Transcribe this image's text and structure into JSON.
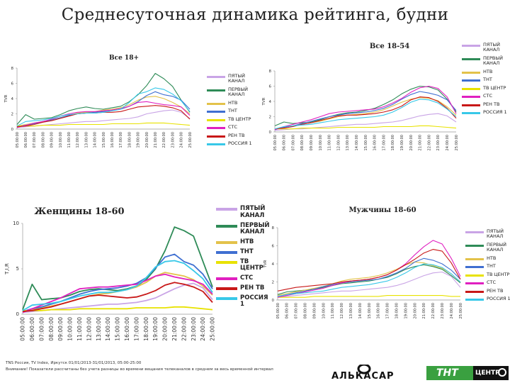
{
  "page": {
    "title": "Среднесуточная динамика рейтинга, будни",
    "footer_lines": [
      "TNS Россия, TV Index, Иркутск 01/01/2013-31/01/2013, 05:00-25:00",
      "Внимание! Показатели рассчитаны без учета разницы во времени вещания телеканалов в среднем за весь временной интервал"
    ],
    "logos": [
      "АЛЬКАСАР",
      "ТНТ",
      "ЦЕНТР"
    ]
  },
  "series_styles": [
    {
      "key": "pyatyi",
      "color": "#c9a4e6"
    },
    {
      "key": "pervyi",
      "color": "#2e8b57"
    },
    {
      "key": "ntv",
      "color": "#e3c24a"
    },
    {
      "key": "tnt",
      "color": "#3f6fd1"
    },
    {
      "key": "tvcentr",
      "color": "#e8e200"
    },
    {
      "key": "sts",
      "color": "#e020c0"
    },
    {
      "key": "rentv",
      "color": "#c81818"
    },
    {
      "key": "rossiya",
      "color": "#38c8e8"
    }
  ],
  "chart_data": [
    {
      "id": "all18",
      "type": "line",
      "title": "Все 18+",
      "ylabel": "TVR",
      "yticks": [
        "0",
        "2",
        "4",
        "6",
        "8"
      ],
      "ylim": [
        0,
        8
      ],
      "x": [
        "05:00:00",
        "06:00:00",
        "07:00:00",
        "08:00:00",
        "09:00:00",
        "10:00:00",
        "11:00:00",
        "12:00:00",
        "13:00:00",
        "14:00:00",
        "15:00:00",
        "16:00:00",
        "17:00:00",
        "18:00:00",
        "19:00:00",
        "20:00:00",
        "21:00:00",
        "22:00:00",
        "23:00:00",
        "24:00:00",
        "25:00:00"
      ],
      "legend": [
        "ПЯТЫЙ КАНАЛ",
        "ПЕРВЫЙ КАНАЛ",
        "НТВ",
        "ТНТ",
        "ТВ ЦЕНТР",
        "СТС",
        "РЕН ТВ",
        "РОССИЯ 1"
      ],
      "series": [
        {
          "name": "ПЯТЫЙ КАНАЛ",
          "values": [
            0.2,
            0.3,
            0.4,
            0.5,
            0.6,
            0.7,
            0.8,
            0.9,
            1.0,
            1.0,
            1.1,
            1.2,
            1.3,
            1.4,
            1.6,
            2.0,
            2.2,
            2.4,
            2.5,
            2.2,
            1.4
          ]
        },
        {
          "name": "ПЕРВЫЙ КАНАЛ",
          "values": [
            0.6,
            1.9,
            1.3,
            1.4,
            1.5,
            1.9,
            2.4,
            2.7,
            2.9,
            2.7,
            2.6,
            2.8,
            3.0,
            3.6,
            4.5,
            5.7,
            7.3,
            6.6,
            5.6,
            3.8,
            2.2
          ]
        },
        {
          "name": "НТВ",
          "values": [
            0.4,
            0.6,
            0.8,
            1.0,
            1.2,
            1.5,
            1.8,
            2.1,
            2.2,
            2.3,
            2.5,
            2.6,
            2.8,
            3.2,
            3.8,
            4.2,
            4.3,
            4.0,
            3.5,
            2.9,
            2.0
          ]
        },
        {
          "name": "ТНТ",
          "values": [
            0.3,
            0.5,
            0.7,
            1.0,
            1.2,
            1.5,
            1.8,
            2.0,
            2.1,
            2.2,
            2.3,
            2.4,
            2.6,
            3.0,
            3.6,
            4.4,
            4.9,
            4.5,
            4.3,
            3.8,
            2.6
          ]
        },
        {
          "name": "ТВ ЦЕНТР",
          "values": [
            0.4,
            0.4,
            0.4,
            0.5,
            0.5,
            0.5,
            0.6,
            0.6,
            0.6,
            0.6,
            0.6,
            0.7,
            0.7,
            0.7,
            0.7,
            0.8,
            0.8,
            0.8,
            0.7,
            0.6,
            0.5
          ]
        },
        {
          "name": "СТС",
          "values": [
            0.2,
            0.5,
            0.8,
            1.0,
            1.3,
            1.7,
            2.0,
            2.2,
            2.3,
            2.3,
            2.4,
            2.5,
            2.7,
            3.0,
            3.5,
            3.6,
            3.4,
            3.2,
            3.1,
            2.9,
            1.8
          ]
        },
        {
          "name": "РЕН ТВ",
          "values": [
            0.3,
            0.4,
            0.6,
            0.9,
            1.1,
            1.4,
            1.7,
            2.0,
            2.1,
            2.1,
            2.2,
            2.2,
            2.3,
            2.6,
            2.9,
            3.0,
            3.1,
            3.0,
            2.8,
            2.4,
            1.3
          ]
        },
        {
          "name": "РОССИЯ 1",
          "values": [
            0.4,
            1.0,
            1.1,
            1.2,
            1.4,
            1.7,
            1.9,
            2.0,
            2.1,
            2.1,
            2.2,
            2.4,
            2.6,
            3.5,
            4.6,
            4.9,
            5.4,
            5.2,
            4.6,
            3.7,
            2.3
          ]
        }
      ]
    },
    {
      "id": "all1854",
      "type": "line",
      "title": "Все 18-54",
      "ylabel": "TVR",
      "yticks": [
        "0",
        "2",
        "4",
        "6",
        "8"
      ],
      "ylim": [
        0,
        8
      ],
      "x": [
        "05:00:00",
        "06:00:00",
        "07:00:00",
        "08:00:00",
        "09:00:00",
        "10:00:00",
        "11:00:00",
        "12:00:00",
        "13:00:00",
        "14:00:00",
        "15:00:00",
        "16:00:00",
        "17:00:00",
        "18:00:00",
        "19:00:00",
        "20:00:00",
        "21:00:00",
        "22:00:00",
        "23:00:00",
        "24:00:00",
        "25:00:00"
      ],
      "legend": [
        "ПЯТЫЙ КАНАЛ",
        "ПЕРВЫЙ КАНАЛ",
        "НТВ",
        "ТНТ",
        "ТВ ЦЕНТР",
        "СТС",
        "РЕН ТВ",
        "РОССИЯ 1"
      ],
      "series": [
        {
          "name": "ПЯТЫЙ КАНАЛ",
          "values": [
            0.2,
            0.3,
            0.4,
            0.4,
            0.5,
            0.6,
            0.7,
            0.8,
            0.9,
            1.0,
            1.0,
            1.1,
            1.2,
            1.3,
            1.5,
            1.8,
            2.1,
            2.3,
            2.4,
            2.1,
            1.3
          ]
        },
        {
          "name": "ПЕРВЫЙ КАНАЛ",
          "values": [
            0.8,
            1.3,
            1.1,
            1.2,
            1.3,
            1.6,
            2.0,
            2.3,
            2.5,
            2.6,
            2.8,
            3.1,
            3.6,
            4.2,
            5.0,
            5.6,
            6.0,
            5.9,
            5.5,
            4.3,
            2.6
          ]
        },
        {
          "name": "НТВ",
          "values": [
            0.4,
            0.6,
            0.8,
            1.0,
            1.2,
            1.4,
            1.7,
            2.0,
            2.2,
            2.3,
            2.4,
            2.6,
            2.9,
            3.4,
            3.9,
            4.3,
            4.5,
            4.4,
            4.1,
            3.3,
            2.2
          ]
        },
        {
          "name": "ТНТ",
          "values": [
            0.3,
            0.6,
            0.8,
            1.1,
            1.4,
            1.7,
            2.0,
            2.2,
            2.4,
            2.5,
            2.6,
            2.8,
            3.1,
            3.6,
            4.3,
            4.9,
            5.3,
            5.1,
            4.8,
            4.2,
            2.8
          ]
        },
        {
          "name": "ТВ ЦЕНТР",
          "values": [
            0.4,
            0.4,
            0.4,
            0.5,
            0.5,
            0.5,
            0.5,
            0.6,
            0.6,
            0.6,
            0.6,
            0.6,
            0.7,
            0.7,
            0.7,
            0.7,
            0.8,
            0.8,
            0.7,
            0.6,
            0.5
          ]
        },
        {
          "name": "СТС",
          "values": [
            0.3,
            0.7,
            1.0,
            1.3,
            1.6,
            2.0,
            2.4,
            2.6,
            2.7,
            2.8,
            2.9,
            3.0,
            3.3,
            3.8,
            4.4,
            5.2,
            5.8,
            6.0,
            5.7,
            4.6,
            2.4
          ]
        },
        {
          "name": "РЕН ТВ",
          "values": [
            0.4,
            0.5,
            0.7,
            1.0,
            1.2,
            1.5,
            1.8,
            2.1,
            2.2,
            2.2,
            2.3,
            2.4,
            2.6,
            2.9,
            3.4,
            4.2,
            4.6,
            4.5,
            4.0,
            3.1,
            1.8
          ]
        },
        {
          "name": "РОССИЯ 1",
          "values": [
            0.4,
            0.7,
            0.8,
            0.9,
            1.0,
            1.2,
            1.4,
            1.6,
            1.7,
            1.8,
            1.9,
            2.0,
            2.2,
            2.6,
            3.2,
            3.9,
            4.3,
            4.2,
            3.8,
            3.0,
            2.0
          ]
        }
      ]
    },
    {
      "id": "women1860",
      "type": "line",
      "title": "Женщины 18-60",
      "ylabel": "T,I,R",
      "yticks": [
        "0",
        "5",
        "10"
      ],
      "ylim": [
        0,
        10
      ],
      "x": [
        "05:00:00",
        "06:00:00",
        "07:00:00",
        "08:00:00",
        "09:00:00",
        "10:00:00",
        "11:00:00",
        "12:00:00",
        "13:00:00",
        "14:00:00",
        "15:00:00",
        "16:00:00",
        "17:00:00",
        "18:00:00",
        "19:00:00",
        "20:00:00",
        "21:00:00",
        "22:00:00",
        "23:00:00",
        "24:00:00",
        "25:00:00"
      ],
      "legend": [
        "ПЯТЫЙ КАНАЛ",
        "ПЕРВЫЙ КАНАЛ",
        "НТВ",
        "ТНТ",
        "ТВ ЦЕНТР",
        "СТС",
        "РЕН ТВ",
        "РОССИЯ 1"
      ],
      "series": [
        {
          "name": "ПЯТЫЙ КАНАЛ",
          "values": [
            0.2,
            0.3,
            0.4,
            0.5,
            0.6,
            0.7,
            0.8,
            0.9,
            1.0,
            1.1,
            1.1,
            1.2,
            1.3,
            1.5,
            1.8,
            2.3,
            2.8,
            3.2,
            3.4,
            2.9,
            1.6
          ]
        },
        {
          "name": "ПЕРВЫЙ КАНАЛ",
          "values": [
            0.5,
            3.3,
            1.6,
            1.7,
            1.8,
            2.1,
            2.5,
            2.7,
            2.8,
            2.7,
            2.6,
            2.8,
            3.1,
            3.8,
            5.0,
            7.0,
            9.6,
            9.2,
            8.6,
            5.8,
            3.0
          ]
        },
        {
          "name": "НТВ",
          "values": [
            0.3,
            0.5,
            0.7,
            0.9,
            1.1,
            1.4,
            1.7,
            2.0,
            2.2,
            2.3,
            2.5,
            2.7,
            3.0,
            3.5,
            4.2,
            4.6,
            4.4,
            4.2,
            3.8,
            3.1,
            2.1
          ]
        },
        {
          "name": "ТНТ",
          "values": [
            0.3,
            0.6,
            0.8,
            1.1,
            1.4,
            1.8,
            2.2,
            2.5,
            2.7,
            2.8,
            2.9,
            3.1,
            3.4,
            4.0,
            5.1,
            6.3,
            6.6,
            5.8,
            5.4,
            4.4,
            2.8
          ]
        },
        {
          "name": "ТВ ЦЕНТР",
          "values": [
            0.4,
            0.4,
            0.4,
            0.5,
            0.5,
            0.5,
            0.6,
            0.6,
            0.6,
            0.6,
            0.6,
            0.6,
            0.7,
            0.7,
            0.7,
            0.7,
            0.8,
            0.8,
            0.7,
            0.6,
            0.5
          ]
        },
        {
          "name": "СТС",
          "values": [
            0.2,
            0.6,
            1.0,
            1.4,
            1.8,
            2.3,
            2.8,
            2.9,
            3.0,
            3.0,
            3.1,
            3.2,
            3.3,
            3.7,
            4.2,
            4.4,
            4.1,
            3.9,
            3.7,
            3.3,
            2.2
          ]
        },
        {
          "name": "РЕН ТВ",
          "values": [
            0.3,
            0.4,
            0.6,
            0.8,
            1.1,
            1.4,
            1.7,
            2.0,
            2.1,
            2.0,
            1.9,
            1.8,
            1.9,
            2.2,
            2.6,
            3.2,
            3.5,
            3.3,
            3.0,
            2.5,
            1.3
          ]
        },
        {
          "name": "РОССИЯ 1",
          "values": [
            0.4,
            1.0,
            1.1,
            1.2,
            1.4,
            1.7,
            2.0,
            2.2,
            2.4,
            2.4,
            2.5,
            2.7,
            3.1,
            4.0,
            5.2,
            5.8,
            5.9,
            5.6,
            4.8,
            3.9,
            2.4
          ]
        }
      ]
    },
    {
      "id": "men1860",
      "type": "line",
      "title": "Мужчины 18-60",
      "ylabel": "TVR",
      "yticks": [
        "0",
        "2",
        "4",
        "6",
        "8"
      ],
      "ylim": [
        0,
        8
      ],
      "x": [
        "05:00:00",
        "06:00:00",
        "07:00:00",
        "08:00:00",
        "09:00:00",
        "10:00:00",
        "11:00:00",
        "12:00:00",
        "13:00:00",
        "14:00:00",
        "15:00:00",
        "16:00:00",
        "17:00:00",
        "18:00:00",
        "19:00:00",
        "20:00:00",
        "21:00:00",
        "22:00:00",
        "23:00:00",
        "24:00:00",
        "25:00:00"
      ],
      "legend": [
        "ПЯТЫЙ КАНАЛ",
        "ПЕРВЫЙ КАНАЛ",
        "НТВ",
        "ТНТ",
        "ТВ ЦЕНТР",
        "СТС",
        "РЕН ТВ",
        "РОССИЯ 1"
      ],
      "series": [
        {
          "name": "ПЯТЫЙ КАНАЛ",
          "values": [
            0.3,
            0.4,
            0.5,
            0.6,
            0.7,
            0.8,
            0.9,
            1.0,
            1.0,
            1.1,
            1.2,
            1.3,
            1.4,
            1.6,
            1.9,
            2.3,
            2.7,
            3.0,
            3.1,
            2.6,
            1.4
          ]
        },
        {
          "name": "ПЕРВЫЙ КАНАЛ",
          "values": [
            0.6,
            0.9,
            1.0,
            1.1,
            1.2,
            1.4,
            1.6,
            1.8,
            1.9,
            2.0,
            2.1,
            2.3,
            2.5,
            2.9,
            3.4,
            3.7,
            3.9,
            3.7,
            3.4,
            2.7,
            1.9
          ]
        },
        {
          "name": "НТВ",
          "values": [
            0.5,
            0.7,
            0.9,
            1.1,
            1.3,
            1.5,
            1.8,
            2.1,
            2.3,
            2.4,
            2.5,
            2.7,
            3.0,
            3.4,
            3.9,
            4.2,
            4.1,
            3.8,
            3.5,
            2.9,
            2.0
          ]
        },
        {
          "name": "ТНТ",
          "values": [
            0.4,
            0.6,
            0.8,
            1.0,
            1.2,
            1.5,
            1.7,
            1.9,
            2.0,
            2.1,
            2.2,
            2.3,
            2.6,
            3.0,
            3.5,
            4.2,
            4.6,
            4.4,
            4.0,
            3.3,
            2.3
          ]
        },
        {
          "name": "ТВ ЦЕНТР",
          "values": [
            0.3,
            0.3,
            0.3,
            0.3,
            0.4,
            0.4,
            0.4,
            0.4,
            0.4,
            0.4,
            0.4,
            0.4,
            0.5,
            0.5,
            0.5,
            0.5,
            0.5,
            0.5,
            0.5,
            0.4,
            0.4
          ]
        },
        {
          "name": "СТС",
          "values": [
            0.3,
            0.5,
            0.7,
            0.9,
            1.1,
            1.3,
            1.6,
            1.9,
            2.1,
            2.2,
            2.3,
            2.5,
            2.8,
            3.3,
            4.0,
            5.0,
            5.9,
            6.6,
            6.2,
            4.6,
            2.6
          ]
        },
        {
          "name": "РЕН ТВ",
          "values": [
            1.0,
            1.2,
            1.4,
            1.5,
            1.6,
            1.7,
            1.8,
            2.0,
            2.1,
            2.2,
            2.3,
            2.5,
            2.8,
            3.3,
            3.9,
            4.5,
            5.2,
            5.6,
            5.4,
            4.1,
            2.3
          ]
        },
        {
          "name": "РОССИЯ 1",
          "values": [
            0.4,
            0.6,
            0.7,
            0.8,
            0.9,
            1.0,
            1.2,
            1.4,
            1.5,
            1.6,
            1.7,
            1.9,
            2.1,
            2.5,
            3.0,
            3.6,
            4.0,
            3.9,
            3.6,
            2.9,
            2.0
          ]
        }
      ]
    }
  ]
}
